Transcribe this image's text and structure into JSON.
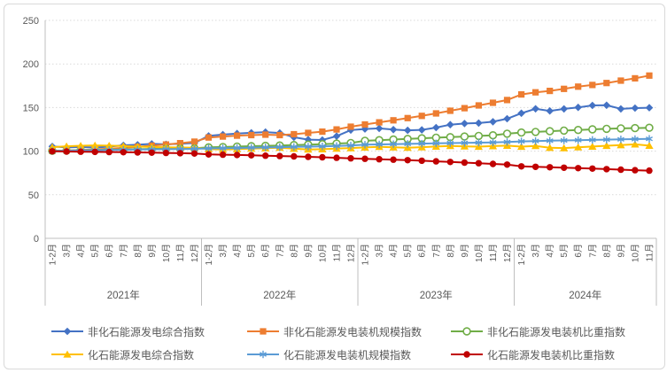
{
  "chart_data": {
    "type": "line",
    "title": "",
    "ylim": [
      0,
      250
    ],
    "y_ticks": [
      0,
      50,
      100,
      150,
      200,
      250
    ],
    "grid": "horizontal-dotted",
    "legend_position": "bottom",
    "year_groups": [
      {
        "label": "2021年",
        "months": [
          "1-2月",
          "3月",
          "4月",
          "5月",
          "6月",
          "7月",
          "8月",
          "9月",
          "10月",
          "11月",
          "12月"
        ]
      },
      {
        "label": "2022年",
        "months": [
          "1-2月",
          "3月",
          "4月",
          "5月",
          "6月",
          "7月",
          "8月",
          "9月",
          "10月",
          "11月",
          "12月"
        ]
      },
      {
        "label": "2023年",
        "months": [
          "1-2月",
          "3月",
          "4月",
          "5月",
          "6月",
          "7月",
          "8月",
          "9月",
          "10月",
          "11月",
          "12月"
        ]
      },
      {
        "label": "2024年",
        "months": [
          "1-2月",
          "3月",
          "4月",
          "5月",
          "6月",
          "7月",
          "8月",
          "9月",
          "10月",
          "11月"
        ]
      }
    ],
    "series": [
      {
        "name": "非化石能源发电综合指数",
        "color": "#4472C4",
        "marker": "diamond",
        "values": [
          105.4,
          104.3,
          104.8,
          104.2,
          105.2,
          106.7,
          107.3,
          108.3,
          107.8,
          108.4,
          109.3,
          117.5,
          119.0,
          120.2,
          121.0,
          121.8,
          120.8,
          116.0,
          113.2,
          112.8,
          117.2,
          124.2,
          125.4,
          126.1,
          124.7,
          123.9,
          124.4,
          127.0,
          130.4,
          131.7,
          132.2,
          133.7,
          137.2,
          143.5,
          148.6,
          146.1,
          148.5,
          150.2,
          152.4,
          152.6,
          148.5,
          149.4,
          149.8
        ]
      },
      {
        "name": "非化石能源发电装机规模指数",
        "color": "#ED7D31",
        "marker": "square",
        "values": [
          100.2,
          100.7,
          101.3,
          102.0,
          102.8,
          103.8,
          105.0,
          106.3,
          107.6,
          109.1,
          110.9,
          115.6,
          116.8,
          117.8,
          118.4,
          118.9,
          118.4,
          119.4,
          120.9,
          122.4,
          124.9,
          128.0,
          130.6,
          133.0,
          135.4,
          137.9,
          140.4,
          143.3,
          146.3,
          149.3,
          152.4,
          155.5,
          158.6,
          165.0,
          167.5,
          169.1,
          171.4,
          174.0,
          175.9,
          178.2,
          180.9,
          183.5,
          186.7
        ]
      },
      {
        "name": "非化石能源发电装机比重指数",
        "color": "#70AD47",
        "marker": "circle-open",
        "values": [
          100.4,
          100.7,
          101.0,
          101.3,
          101.6,
          101.9,
          102.2,
          102.5,
          102.8,
          103.0,
          103.3,
          104.4,
          104.8,
          105.3,
          105.7,
          106.1,
          106.5,
          107.0,
          107.5,
          108.0,
          108.6,
          109.3,
          111.9,
          112.6,
          113.3,
          114.0,
          114.7,
          115.4,
          116.1,
          116.8,
          117.5,
          118.2,
          120.0,
          121.3,
          122.1,
          122.9,
          123.6,
          124.3,
          125.0,
          125.6,
          126.1,
          126.4,
          126.8
        ]
      },
      {
        "name": "化石能源发电综合指数",
        "color": "#FFC000",
        "marker": "triangle",
        "values": [
          104.6,
          105.6,
          106.2,
          106.6,
          106.3,
          105.8,
          105.2,
          104.8,
          104.5,
          104.2,
          103.9,
          102.4,
          101.8,
          102.3,
          102.9,
          103.4,
          104.0,
          102.8,
          101.9,
          102.2,
          102.9,
          103.6,
          104.3,
          105.0,
          104.4,
          104.0,
          104.6,
          105.3,
          106.0,
          105.5,
          105.2,
          105.8,
          106.3,
          105.2,
          106.0,
          103.9,
          103.6,
          104.5,
          105.3,
          106.2,
          106.9,
          107.8,
          106.3
        ]
      },
      {
        "name": "化石能源发电装机规模指数",
        "color": "#5B9BD5",
        "marker": "asterisk",
        "values": [
          100.3,
          100.5,
          100.8,
          101.0,
          101.3,
          101.5,
          101.8,
          102.0,
          102.2,
          102.4,
          102.6,
          103.1,
          103.4,
          103.7,
          104.0,
          104.3,
          104.6,
          104.9,
          105.2,
          105.5,
          105.9,
          106.4,
          107.4,
          107.7,
          108.0,
          108.3,
          108.6,
          108.9,
          109.2,
          109.5,
          109.8,
          110.1,
          110.5,
          111.2,
          111.6,
          112.0,
          112.3,
          112.6,
          112.9,
          113.2,
          113.5,
          113.8,
          114.1
        ]
      },
      {
        "name": "化石能源发电装机比重指数",
        "color": "#C00000",
        "marker": "circle",
        "values": [
          99.8,
          99.6,
          99.4,
          99.2,
          99.0,
          98.8,
          98.6,
          98.3,
          98.0,
          97.7,
          97.3,
          96.2,
          95.9,
          95.6,
          95.2,
          94.8,
          94.4,
          94.0,
          93.5,
          93.0,
          92.4,
          91.8,
          91.3,
          90.8,
          90.2,
          89.6,
          89.0,
          88.3,
          87.6,
          86.9,
          86.2,
          85.4,
          84.6,
          82.5,
          82.0,
          81.5,
          81.0,
          80.5,
          80.0,
          79.4,
          78.8,
          78.2,
          77.6
        ]
      }
    ]
  },
  "style": {
    "grid_color": "#D9D9D9",
    "axis_color": "#BFBFBF",
    "text_color": "#595959",
    "border_color": "#D9D9D9",
    "background": "#FFFFFF"
  }
}
